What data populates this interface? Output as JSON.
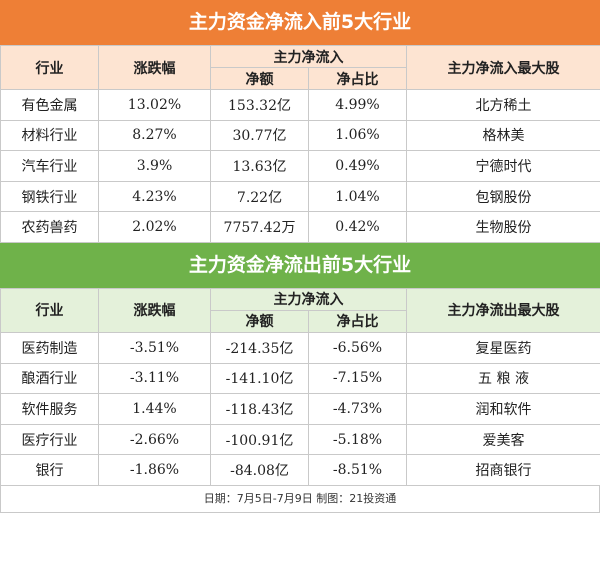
{
  "inflow": {
    "title": "主力资金净流入前5大行业",
    "headers": {
      "industry": "行业",
      "change": "涨跌幅",
      "main_flow": "主力净流入",
      "net_amount": "净额",
      "net_ratio": "净占比",
      "top_stock": "主力净流入最大股"
    },
    "rows": [
      {
        "industry": "有色金属",
        "change": "13.02%",
        "net_amount": "153.32亿",
        "net_ratio": "4.99%",
        "top_stock": "北方稀土"
      },
      {
        "industry": "材料行业",
        "change": "8.27%",
        "net_amount": "30.77亿",
        "net_ratio": "1.06%",
        "top_stock": "格林美"
      },
      {
        "industry": "汽车行业",
        "change": "3.9%",
        "net_amount": "13.63亿",
        "net_ratio": "0.49%",
        "top_stock": "宁德时代"
      },
      {
        "industry": "钢铁行业",
        "change": "4.23%",
        "net_amount": "7.22亿",
        "net_ratio": "1.04%",
        "top_stock": "包钢股份"
      },
      {
        "industry": "农药兽药",
        "change": "2.02%",
        "net_amount": "7757.42万",
        "net_ratio": "0.42%",
        "top_stock": "生物股份"
      }
    ]
  },
  "outflow": {
    "title": "主力资金净流出前5大行业",
    "headers": {
      "industry": "行业",
      "change": "涨跌幅",
      "main_flow": "主力净流入",
      "net_amount": "净额",
      "net_ratio": "净占比",
      "top_stock": "主力净流出最大股"
    },
    "rows": [
      {
        "industry": "医药制造",
        "change": "-3.51%",
        "net_amount": "-214.35亿",
        "net_ratio": "-6.56%",
        "top_stock": "复星医药"
      },
      {
        "industry": "酿酒行业",
        "change": "-3.11%",
        "net_amount": "-141.10亿",
        "net_ratio": "-7.15%",
        "top_stock": "五 粮 液"
      },
      {
        "industry": "软件服务",
        "change": "1.44%",
        "net_amount": "-118.43亿",
        "net_ratio": "-4.73%",
        "top_stock": "润和软件"
      },
      {
        "industry": "医疗行业",
        "change": "-2.66%",
        "net_amount": "-100.91亿",
        "net_ratio": "-5.18%",
        "top_stock": "爱美客"
      },
      {
        "industry": "银行",
        "change": "-1.86%",
        "net_amount": "-84.08亿",
        "net_ratio": "-8.51%",
        "top_stock": "招商银行"
      }
    ]
  },
  "footer": "日期：7月5日-7月9日  制图：21投资通",
  "colors": {
    "inflow_accent": "#ee7f36",
    "outflow_accent": "#6fb24a"
  }
}
